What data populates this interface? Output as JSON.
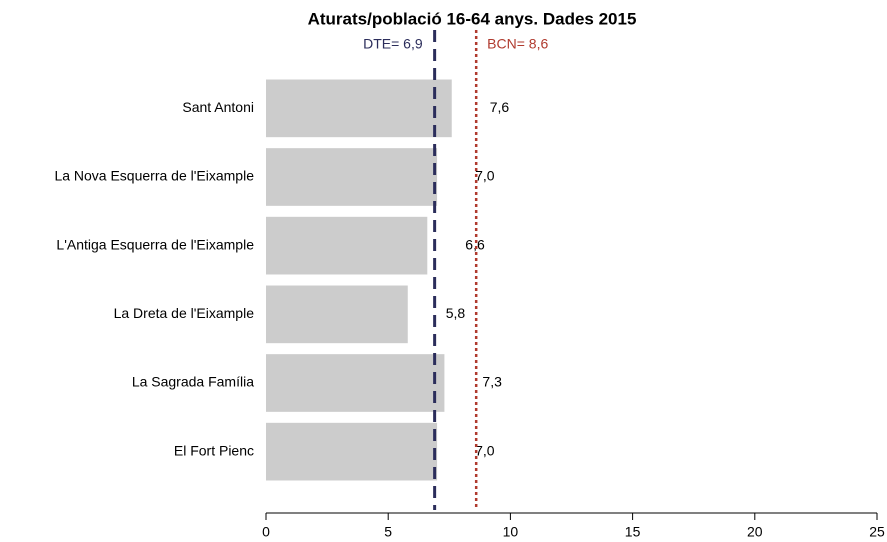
{
  "chart_data": {
    "type": "barh",
    "title": "Aturats/població 16-64 anys. Dades 2015",
    "categories": [
      "Sant Antoni",
      "La Nova Esquerra de l'Eixample",
      "L'Antiga Esquerra de l'Eixample",
      "La Dreta de l'Eixample",
      "La Sagrada Família",
      "El Fort Pienc"
    ],
    "values": [
      7.6,
      7.0,
      6.6,
      5.8,
      7.3,
      7.0
    ],
    "value_labels": [
      "7,6",
      "7,0",
      "6,6",
      "5,8",
      "7,3",
      "7,0"
    ],
    "color": "#cccccc",
    "xlim": [
      0,
      25
    ],
    "xticks": [
      0,
      5,
      10,
      15,
      20,
      25
    ],
    "reference_lines": [
      {
        "value": 6.9,
        "label": "DTE= 6,9",
        "color": "#2b2d5b",
        "style": "dashed"
      },
      {
        "value": 8.6,
        "label": "BCN= 8,6",
        "color": "#b03a2e",
        "style": "dotted"
      }
    ]
  }
}
